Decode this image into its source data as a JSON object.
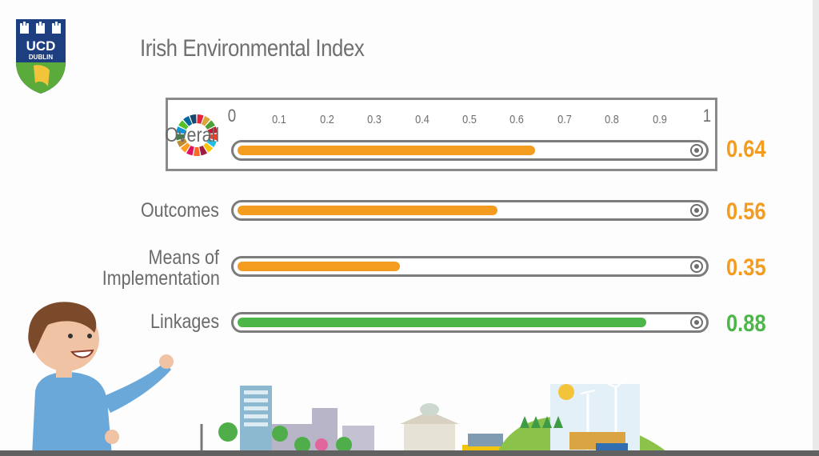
{
  "logo": {
    "line1": "UCD",
    "line2": "DUBLIN"
  },
  "colors": {
    "orange": "#f39c1f",
    "green": "#4cb648",
    "track_border": "#7c7c7c",
    "text_gray": "#6a6a6a"
  },
  "chart_data": {
    "type": "bar",
    "orientation": "horizontal",
    "title": "Irish Environmental Index",
    "categories": [
      "Overall",
      "Outcomes",
      "Means of Implementation",
      "Linkages"
    ],
    "values": [
      0.64,
      0.56,
      0.35,
      0.88
    ],
    "value_labels": [
      "0.64",
      "0.56",
      "0.35",
      "0.88"
    ],
    "bar_colors": [
      "#f39c1f",
      "#f39c1f",
      "#f39c1f",
      "#4cb648"
    ],
    "xlim": [
      0,
      1
    ],
    "ticks": [
      "0",
      "0.1",
      "0.2",
      "0.3",
      "0.4",
      "0.5",
      "0.6",
      "0.7",
      "0.8",
      "0.9",
      "1"
    ],
    "xlabel": "",
    "ylabel": ""
  }
}
